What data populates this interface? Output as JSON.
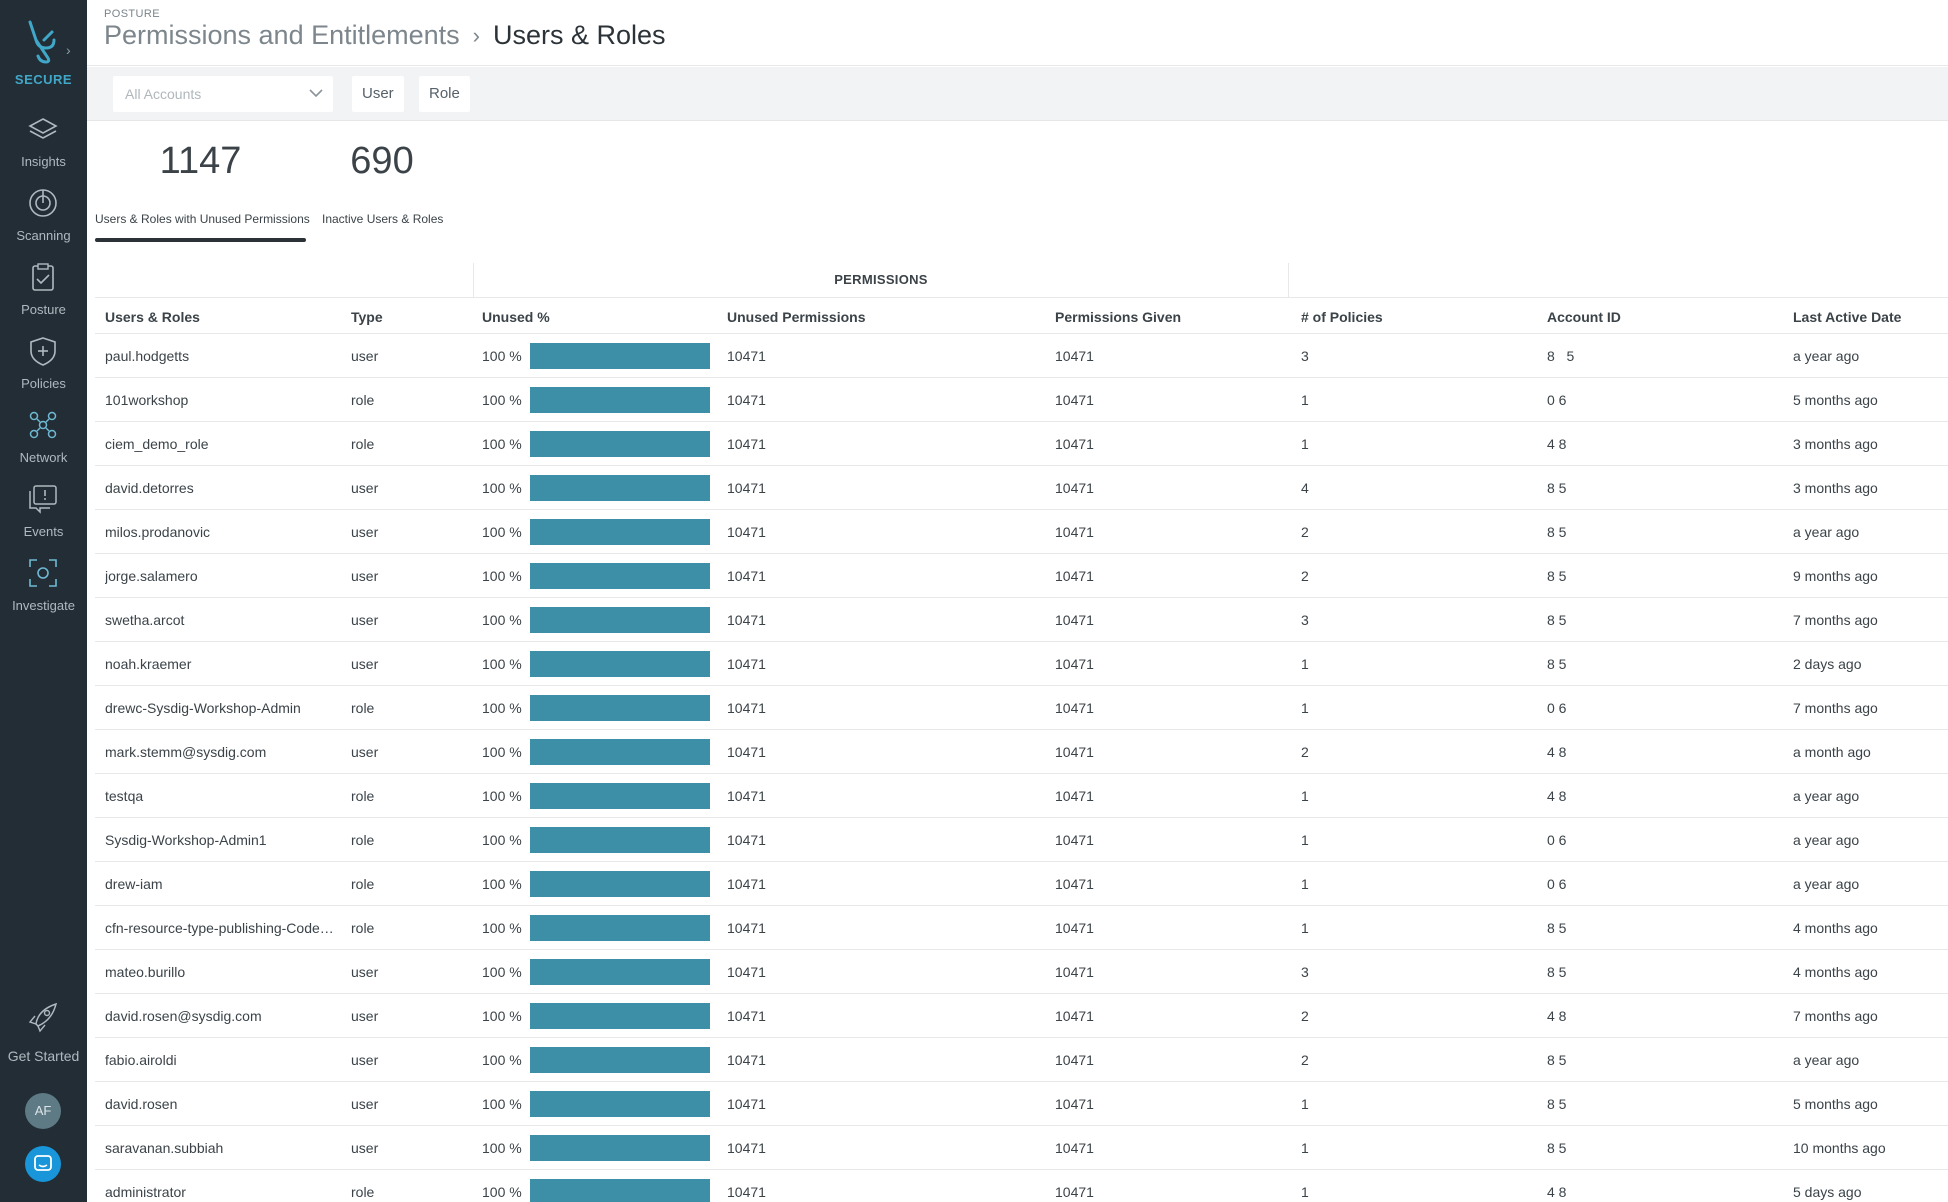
{
  "sidebar": {
    "brand": "SECURE",
    "items": [
      {
        "label": "Insights",
        "icon": "layers-icon"
      },
      {
        "label": "Scanning",
        "icon": "scan-icon"
      },
      {
        "label": "Posture",
        "icon": "clipboard-check-icon"
      },
      {
        "label": "Policies",
        "icon": "shield-plus-icon"
      },
      {
        "label": "Network",
        "icon": "network-icon"
      },
      {
        "label": "Events",
        "icon": "alert-message-icon"
      },
      {
        "label": "Investigate",
        "icon": "investigate-icon"
      }
    ],
    "get_started": "Get Started",
    "avatar_initials": "AF"
  },
  "header": {
    "kicker": "POSTURE",
    "breadcrumb_parent": "Permissions and Entitlements",
    "breadcrumb_current": "Users & Roles"
  },
  "filters": {
    "account_select": "All Accounts",
    "chips": [
      "User",
      "Role"
    ]
  },
  "stats": [
    {
      "value": "1147",
      "label": "Users & Roles with Unused Permissions",
      "active": true
    },
    {
      "value": "690",
      "label": "Inactive Users & Roles",
      "active": false
    }
  ],
  "table": {
    "group_label": "PERMISSIONS",
    "columns": [
      "Users & Roles",
      "Type",
      "Unused %",
      "Unused Permissions",
      "Permissions Given",
      "# of Policies",
      "Account ID",
      "Last Active Date"
    ],
    "rows": [
      {
        "name": "paul.hodgetts",
        "type": "user",
        "pct": "100 %",
        "pct_value": 100,
        "unused": "10471",
        "given": "10471",
        "policies": "3",
        "account": "8‌  ‌‌ ‌‌‌ ‌5",
        "date": "a year ago"
      },
      {
        "name": "101workshop",
        "type": "role",
        "pct": "100 %",
        "pct_value": 100,
        "unused": "10471",
        "given": "10471",
        "policies": "1",
        "account": "0         6",
        "date": "5 months ago"
      },
      {
        "name": "ciem_demo_role",
        "type": "role",
        "pct": "100 %",
        "pct_value": 100,
        "unused": "10471",
        "given": "10471",
        "policies": "1",
        "account": "4         8",
        "date": "3 months ago"
      },
      {
        "name": "david.detorres",
        "type": "user",
        "pct": "100 %",
        "pct_value": 100,
        "unused": "10471",
        "given": "10471",
        "policies": "4",
        "account": "8         5",
        "date": "3 months ago"
      },
      {
        "name": "milos.prodanovic",
        "type": "user",
        "pct": "100 %",
        "pct_value": 100,
        "unused": "10471",
        "given": "10471",
        "policies": "2",
        "account": "8         5",
        "date": "a year ago"
      },
      {
        "name": "jorge.salamero",
        "type": "user",
        "pct": "100 %",
        "pct_value": 100,
        "unused": "10471",
        "given": "10471",
        "policies": "2",
        "account": "8         5",
        "date": "9 months ago"
      },
      {
        "name": "swetha.arcot",
        "type": "user",
        "pct": "100 %",
        "pct_value": 100,
        "unused": "10471",
        "given": "10471",
        "policies": "3",
        "account": "8         5",
        "date": "7 months ago"
      },
      {
        "name": "noah.kraemer",
        "type": "user",
        "pct": "100 %",
        "pct_value": 100,
        "unused": "10471",
        "given": "10471",
        "policies": "1",
        "account": "8         5",
        "date": "2 days ago"
      },
      {
        "name": "drewc-Sysdig-Workshop-Admin",
        "type": "role",
        "pct": "100 %",
        "pct_value": 100,
        "unused": "10471",
        "given": "10471",
        "policies": "1",
        "account": "0         6",
        "date": "7 months ago"
      },
      {
        "name": "mark.stemm@sysdig.com",
        "type": "user",
        "pct": "100 %",
        "pct_value": 100,
        "unused": "10471",
        "given": "10471",
        "policies": "2",
        "account": "4         8",
        "date": "a month ago"
      },
      {
        "name": "testqa",
        "type": "role",
        "pct": "100 %",
        "pct_value": 100,
        "unused": "10471",
        "given": "10471",
        "policies": "1",
        "account": "4         8",
        "date": "a year ago"
      },
      {
        "name": "Sysdig-Workshop-Admin1",
        "type": "role",
        "pct": "100 %",
        "pct_value": 100,
        "unused": "10471",
        "given": "10471",
        "policies": "1",
        "account": "0         6",
        "date": "a year ago"
      },
      {
        "name": "drew-iam",
        "type": "role",
        "pct": "100 %",
        "pct_value": 100,
        "unused": "10471",
        "given": "10471",
        "policies": "1",
        "account": "0         6",
        "date": "a year ago"
      },
      {
        "name": "cfn-resource-type-publishing-Code…",
        "type": "role",
        "pct": "100 %",
        "pct_value": 100,
        "unused": "10471",
        "given": "10471",
        "policies": "1",
        "account": "8         5",
        "date": "4 months ago"
      },
      {
        "name": "mateo.burillo",
        "type": "user",
        "pct": "100 %",
        "pct_value": 100,
        "unused": "10471",
        "given": "10471",
        "policies": "3",
        "account": "8         5",
        "date": "4 months ago"
      },
      {
        "name": "david.rosen@sysdig.com",
        "type": "user",
        "pct": "100 %",
        "pct_value": 100,
        "unused": "10471",
        "given": "10471",
        "policies": "2",
        "account": "4         8",
        "date": "7 months ago"
      },
      {
        "name": "fabio.airoldi",
        "type": "user",
        "pct": "100 %",
        "pct_value": 100,
        "unused": "10471",
        "given": "10471",
        "policies": "2",
        "account": "8         5",
        "date": "a year ago"
      },
      {
        "name": "david.rosen",
        "type": "user",
        "pct": "100 %",
        "pct_value": 100,
        "unused": "10471",
        "given": "10471",
        "policies": "1",
        "account": "8         5",
        "date": "5 months ago"
      },
      {
        "name": "saravanan.subbiah",
        "type": "user",
        "pct": "100 %",
        "pct_value": 100,
        "unused": "10471",
        "given": "10471",
        "policies": "1",
        "account": "8         5",
        "date": "10 months ago"
      },
      {
        "name": "administrator",
        "type": "role",
        "pct": "100 %",
        "pct_value": 100,
        "unused": "10471",
        "given": "10471",
        "policies": "1",
        "account": "4         8",
        "date": "5 days ago"
      }
    ]
  },
  "colors": {
    "sidebar_bg": "#222d35",
    "brand_accent": "#41a7c8",
    "bar_fill": "#3d8fa8"
  }
}
